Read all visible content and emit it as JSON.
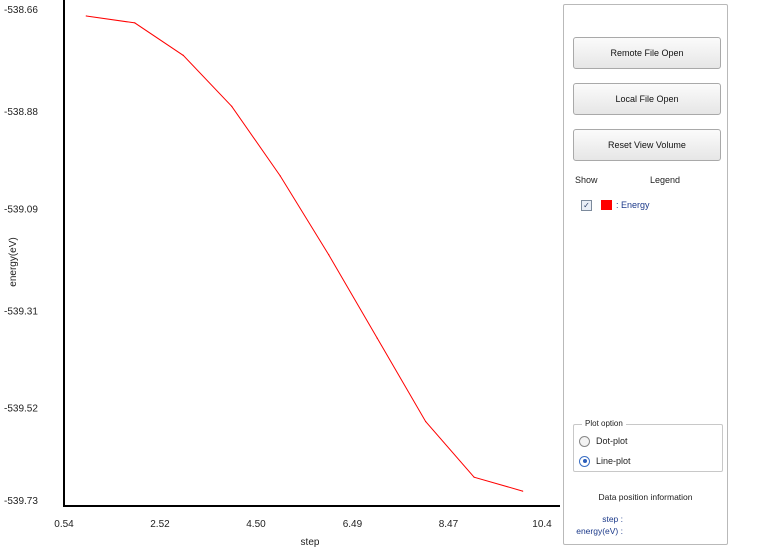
{
  "chart_data": {
    "type": "line",
    "series": [
      {
        "name": "Energy",
        "color": "#ff0000",
        "x": [
          1,
          2,
          3,
          4,
          5,
          6,
          7,
          8,
          9,
          10
        ],
        "y": [
          -538.675,
          -538.69,
          -538.76,
          -538.87,
          -539.02,
          -539.19,
          -539.37,
          -539.55,
          -539.67,
          -539.7
        ]
      }
    ],
    "xlim": [
      0.54,
      10.4
    ],
    "ylim": [
      -539.73,
      -538.66
    ],
    "x_ticks": [
      0.54,
      2.52,
      4.5,
      6.49,
      8.47,
      10.4
    ],
    "x_tick_labels": [
      "0.54",
      "2.52",
      "4.50",
      "6.49",
      "8.47",
      "10.4"
    ],
    "y_ticks": [
      -538.66,
      -538.88,
      -539.09,
      -539.31,
      -539.52,
      -539.73
    ],
    "y_tick_labels": [
      "-538.66",
      "-538.88",
      "-539.09",
      "-539.31",
      "-539.52",
      "-539.73"
    ],
    "xlabel": "step",
    "ylabel": "energy(eV)",
    "grid": false
  },
  "panel": {
    "remote_file_open": "Remote File Open",
    "local_file_open": "Local File Open",
    "reset_view_volume": "Reset View Volume",
    "show_header": "Show",
    "legend_header": "Legend",
    "legend_entry": ": Energy",
    "legend_color": "#ff0000",
    "show_checked": true,
    "checkmark": "✓",
    "plot_option_title": "Plot option",
    "dot_plot_label": "Dot-plot",
    "line_plot_label": "Line-plot",
    "selected_plot": "line",
    "data_position_title": "Data position information",
    "step_label": "step :",
    "energy_label": "energy(eV) :"
  }
}
